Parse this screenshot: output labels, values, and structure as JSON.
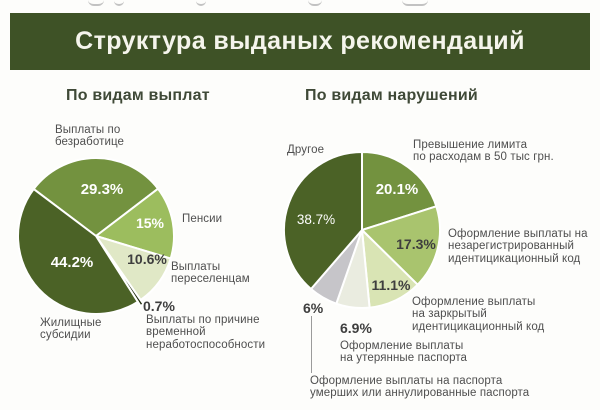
{
  "header": {
    "title": "Структура выданых рекомендаций"
  },
  "colors": {
    "banner_bg": "#3e5226",
    "banner_text": "#f5f5ec",
    "label_text": "#4f4f4f",
    "pct_dark": "#3e3e3e",
    "pct_light": "#ffffff",
    "dark_green": "#4b6226",
    "medium_green": "#73923f",
    "bright_green": "#9cbd5e",
    "light_green": "#a9c46e",
    "pale_green": "#e0e8c6",
    "pale_green_2": "#d9e4b4",
    "palest_green": "#eaece0",
    "gray_slice": "#c6c5c9",
    "sliver_dark": "#1e2a0c"
  },
  "chart_data": [
    {
      "type": "pie",
      "title": "По видам выплат",
      "start_angle_deg": -53,
      "legend_position": "callout-labels",
      "slices": [
        {
          "label": "Выплаты по безработице",
          "label_display": "Выплаты по\nбезработице",
          "value": 29.3,
          "pct_label": "29.3%",
          "color": "#73923f"
        },
        {
          "label": "Пенсии",
          "label_display": "Пенсии",
          "value": 15,
          "pct_label": "15%",
          "color": "#9cbd5e"
        },
        {
          "label": "Выплаты переселенцам",
          "label_display": "Выплаты\nпереселенцам",
          "value": 10.6,
          "pct_label": "10.6%",
          "color": "#e0e8c6"
        },
        {
          "label": "Выплаты по причине временной неработоспособности",
          "label_display": "Выплаты по причине\nвременной\nнеработоспособности",
          "value": 0.7,
          "pct_label": "0.7%",
          "color": "#1e2a0c",
          "explode": 5
        },
        {
          "label": "Жилищные субсидии",
          "label_display": "Жилищные\nсубсидии",
          "value": 44.2,
          "pct_label": "44.2%",
          "color": "#4b6226"
        }
      ]
    },
    {
      "type": "pie",
      "title": "По видам нарушений",
      "start_angle_deg": 0,
      "legend_position": "callout-labels",
      "slices": [
        {
          "label": "Превышение лимита по расходам в 50 тыс грн.",
          "label_display": "Превышение лимита\nпо расходам в 50 тыс грн.",
          "value": 20.1,
          "pct_label": "20.1%",
          "color": "#73923f"
        },
        {
          "label": "Оформление выплаты на незарегистрированный идентицикационный код",
          "label_display": "Оформление выплаты на\nнезарегистрированный\nидентицикационный код",
          "value": 17.3,
          "pct_label": "17.3%",
          "color": "#a9c46e"
        },
        {
          "label": "Оформление выплаты на заркрытый идентицикационный код",
          "label_display": "Оформление выплаты\nна заркрытый\nидентицикационный код",
          "value": 11.1,
          "pct_label": "11.1%",
          "color": "#d9e4b4"
        },
        {
          "label": "Оформление выплаты на утерянные паспорта",
          "label_display": "Оформление выплаты\nна утерянные паспорта",
          "value": 6.9,
          "pct_label": "6.9%",
          "color": "#eaece0"
        },
        {
          "label": "Оформление выплаты на паспорта умерших или аннулированные паспорта",
          "label_display": "Оформление выплаты на паспорта\nумерших или аннулированные паспорта",
          "value": 6,
          "pct_label": "6%",
          "color": "#c6c5c9"
        },
        {
          "label": "Другое",
          "label_display": "Другое",
          "value": 38.7,
          "pct_label": "38.7%",
          "color": "#4b6226"
        }
      ]
    }
  ]
}
